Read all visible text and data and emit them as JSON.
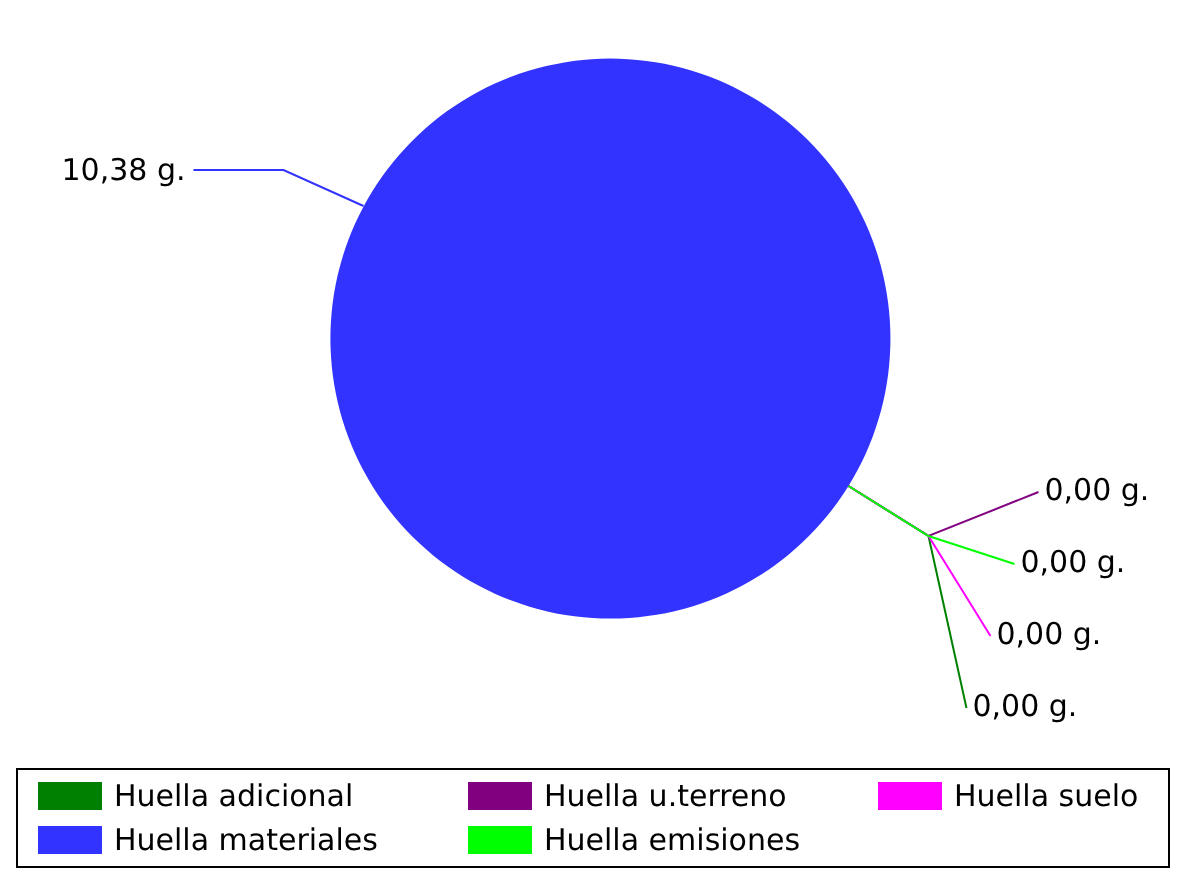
{
  "chart_data": {
    "type": "pie",
    "categories": [
      "Huella adicional",
      "Huella u.terreno",
      "Huella suelo",
      "Huella materiales",
      "Huella emisiones"
    ],
    "values": [
      0,
      0,
      0,
      10.38,
      0
    ],
    "value_labels": [
      "0,00 g.",
      "0,00 g.",
      "0,00 g.",
      "10,38 g.",
      "0,00 g."
    ],
    "colors": [
      "#008000",
      "#800080",
      "#ff00ff",
      "#3333ff",
      "#00ff00"
    ],
    "legend": "bottom"
  }
}
